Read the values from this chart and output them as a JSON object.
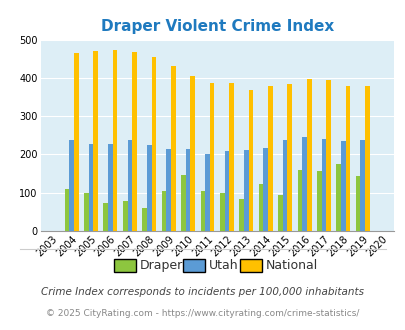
{
  "title": "Draper Violent Crime Index",
  "years": [
    "2003",
    "2004",
    "2005",
    "2006",
    "2007",
    "2008",
    "2009",
    "2010",
    "2011",
    "2012",
    "2013",
    "2014",
    "2015",
    "2016",
    "2017",
    "2018",
    "2019",
    "2020"
  ],
  "draper": [
    0,
    110,
    100,
    73,
    78,
    60,
    105,
    145,
    105,
    100,
    83,
    122,
    95,
    160,
    157,
    175,
    143,
    0
  ],
  "utah": [
    0,
    237,
    227,
    228,
    238,
    224,
    213,
    213,
    200,
    210,
    212,
    218,
    238,
    245,
    241,
    235,
    238,
    0
  ],
  "national": [
    0,
    465,
    470,
    473,
    467,
    455,
    432,
    405,
    387,
    387,
    368,
    379,
    383,
    397,
    394,
    380,
    379,
    0
  ],
  "draper_color": "#8dc63f",
  "utah_color": "#5b9bd5",
  "national_color": "#ffc000",
  "bg_color": "#ddeef6",
  "title_color": "#1f7abf",
  "footer1": "Crime Index corresponds to incidents per 100,000 inhabitants",
  "footer2": "© 2025 CityRating.com - https://www.cityrating.com/crime-statistics/",
  "legend_labels": [
    "Draper",
    "Utah",
    "National"
  ]
}
